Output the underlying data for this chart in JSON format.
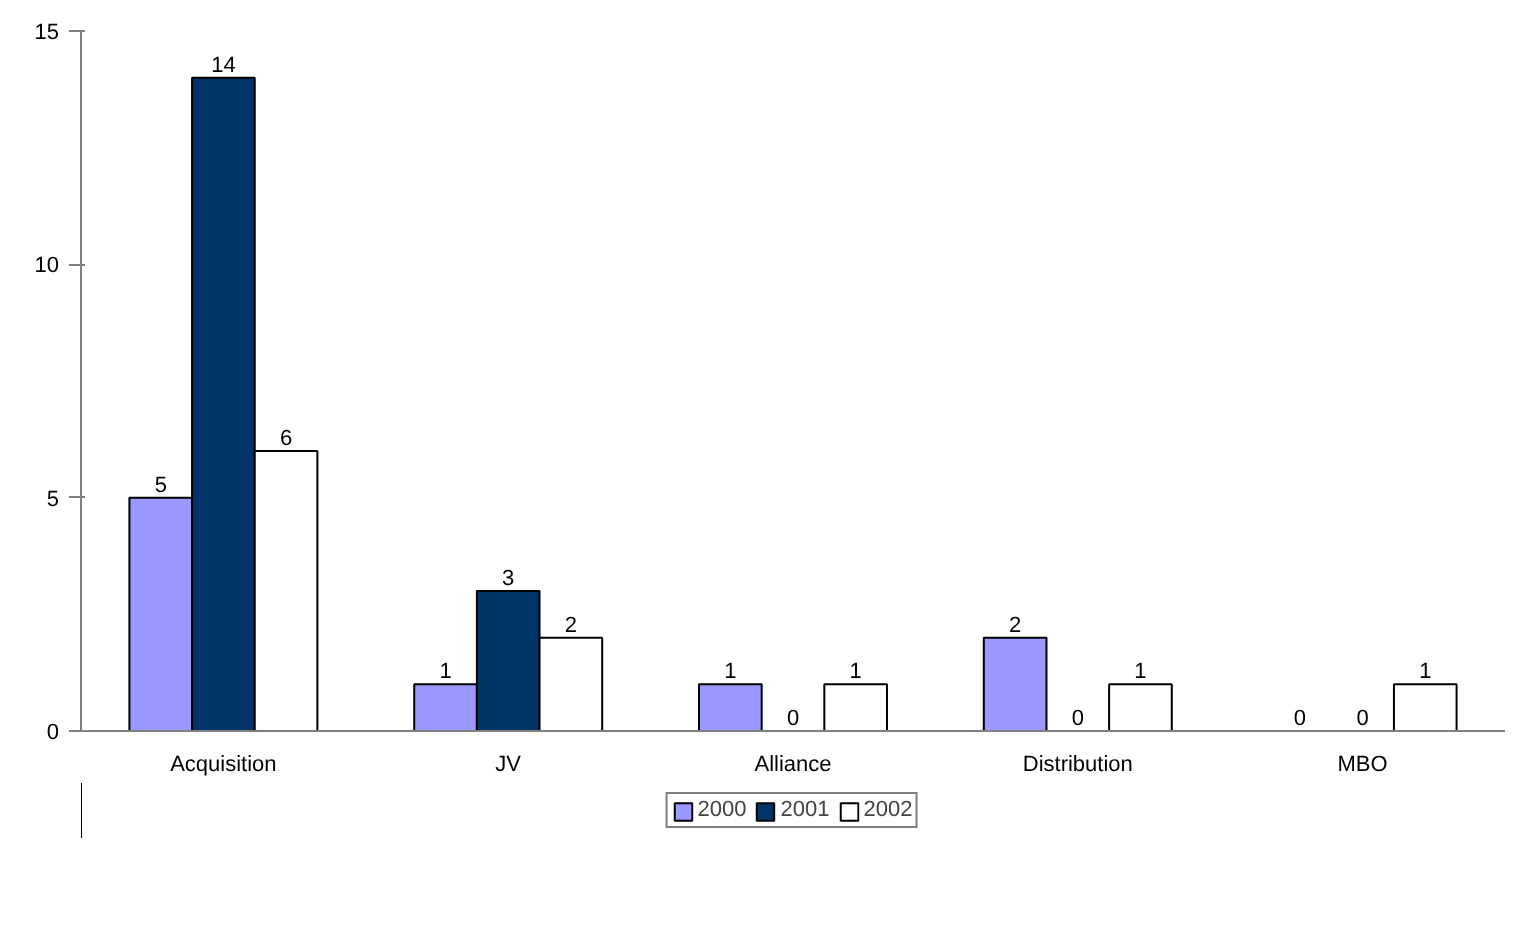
{
  "chart_data": {
    "type": "bar",
    "categories": [
      "Acquisition",
      "JV",
      "Alliance",
      "Distribution",
      "MBO"
    ],
    "series": [
      {
        "name": "2000",
        "color": "#9999ff",
        "values": [
          5,
          1,
          1,
          2,
          0
        ]
      },
      {
        "name": "2001",
        "color": "#003366",
        "values": [
          14,
          3,
          0,
          0,
          0
        ]
      },
      {
        "name": "2002",
        "color": "#ffffff",
        "values": [
          6,
          2,
          1,
          1,
          1
        ]
      }
    ],
    "ylim": [
      0,
      15
    ],
    "yticks": [
      0,
      5,
      10,
      15
    ],
    "grid": false,
    "legend": "bottom",
    "data_labels": true
  }
}
